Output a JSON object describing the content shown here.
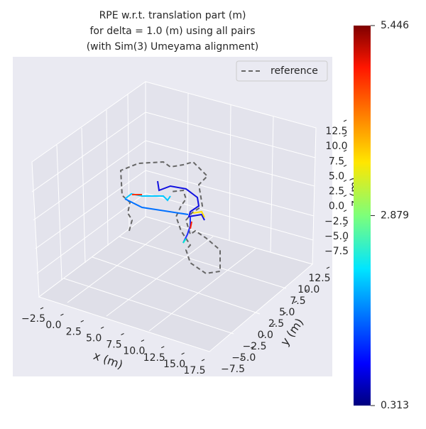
{
  "chart_data": {
    "type": "trajectory3d",
    "title": "RPE w.r.t. translation part (m)\nfor delta = 1.0 (m) using all pairs\n(with Sim(3) Umeyama alignment)",
    "xlabel": "x (m)",
    "ylabel": "y (m)",
    "zlabel": "z (m)",
    "legend": [
      "reference"
    ],
    "xticks": [
      {
        "value": -2.5,
        "label": "−2.5"
      },
      {
        "value": 0,
        "label": "0.0"
      },
      {
        "value": 2.5,
        "label": "2.5"
      },
      {
        "value": 5,
        "label": "5.0"
      },
      {
        "value": 7.5,
        "label": "7.5"
      },
      {
        "value": 10,
        "label": "10.0"
      },
      {
        "value": 12.5,
        "label": "12.5"
      },
      {
        "value": 15,
        "label": "15.0"
      },
      {
        "value": 17.5,
        "label": "17.5"
      }
    ],
    "yticks": [
      {
        "value": -7.5,
        "label": "−7.5"
      },
      {
        "value": -5,
        "label": "−5.0"
      },
      {
        "value": -2.5,
        "label": "−2.5"
      },
      {
        "value": 0,
        "label": "0.0"
      },
      {
        "value": 2.5,
        "label": "2.5"
      },
      {
        "value": 5,
        "label": "5.0"
      },
      {
        "value": 7.5,
        "label": "7.5"
      },
      {
        "value": 10,
        "label": "10.0"
      },
      {
        "value": 12.5,
        "label": "12.5"
      }
    ],
    "zticks": [
      {
        "value": -7.5,
        "label": "−7.5"
      },
      {
        "value": -5,
        "label": "−5.0"
      },
      {
        "value": -2.5,
        "label": "−2.5"
      },
      {
        "value": 0,
        "label": "0.0"
      },
      {
        "value": 2.5,
        "label": "2.5"
      },
      {
        "value": 5,
        "label": "5.0"
      },
      {
        "value": 7.5,
        "label": "7.5"
      },
      {
        "value": 10,
        "label": "10.0"
      },
      {
        "value": 12.5,
        "label": "12.5"
      }
    ],
    "colorbar": {
      "lim": [
        0.313,
        5.446
      ],
      "ticks": [
        0.313,
        2.879,
        5.446
      ],
      "colormap": "jet"
    }
  }
}
